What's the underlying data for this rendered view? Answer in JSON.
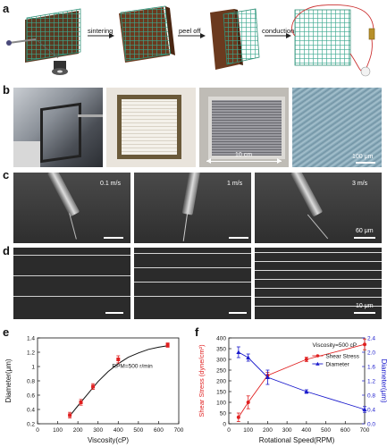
{
  "panels": {
    "a": {
      "letter": "a",
      "steps": [
        "sintering",
        "peel off",
        "conduction"
      ]
    },
    "b": {
      "letter": "b",
      "dimension_label": "10 cm",
      "scale_label": "100 μm"
    },
    "c": {
      "letter": "c",
      "speeds": [
        "0.1 m/s",
        "1 m/s",
        "3 m/s"
      ],
      "scale_label": "60 μm"
    },
    "d": {
      "letter": "d",
      "scale_label": "10 μm"
    },
    "e": {
      "letter": "e"
    },
    "f": {
      "letter": "f"
    }
  },
  "colors": {
    "grid_green": "#3aa88f",
    "sheet_brown": "#6b3a1f",
    "series_red": "#e02020",
    "series_blue": "#1a1acc"
  },
  "chart_data": [
    {
      "type": "line",
      "panel": "e",
      "xlabel": "Viscosity(cP)",
      "ylabel": "Diameter(μm)",
      "annotation": "RPM=500 r/min",
      "xlim": [
        0,
        700
      ],
      "ylim": [
        0.2,
        1.4
      ],
      "xticks": [
        0,
        100,
        200,
        300,
        400,
        500,
        600,
        700
      ],
      "yticks": [
        0.2,
        0.4,
        0.6,
        0.8,
        1.0,
        1.2,
        1.4
      ],
      "series": [
        {
          "x": [
            160,
            215,
            275,
            400,
            645
          ],
          "y": [
            0.32,
            0.5,
            0.72,
            1.1,
            1.3
          ],
          "err": [
            0.04,
            0.04,
            0.04,
            0.05,
            0.03
          ]
        }
      ],
      "fit": {
        "x": [
          160,
          200,
          250,
          300,
          350,
          400,
          450,
          500,
          550,
          600,
          645
        ],
        "y": [
          0.31,
          0.45,
          0.62,
          0.79,
          0.93,
          1.04,
          1.13,
          1.19,
          1.24,
          1.27,
          1.29
        ]
      }
    },
    {
      "type": "line",
      "panel": "f",
      "xlabel": "Rotational Speed(RPM)",
      "ylabel": "Shear Stress (dyne/cm²)",
      "y2label": "Diameter(μm)",
      "annotation": "Viscosity=500 cP",
      "xlim": [
        0,
        700
      ],
      "ylim": [
        0,
        400
      ],
      "y2lim": [
        0.0,
        2.4
      ],
      "xticks": [
        0,
        100,
        200,
        300,
        400,
        500,
        600,
        700
      ],
      "yticks": [
        0,
        50,
        100,
        150,
        200,
        250,
        300,
        350,
        400
      ],
      "y2ticks": [
        0.0,
        0.4,
        0.8,
        1.2,
        1.6,
        2.0,
        2.4
      ],
      "legend_position": "top-right",
      "series": [
        {
          "name": "Shear Stress",
          "axis": "left",
          "x": [
            50,
            100,
            200,
            400,
            700
          ],
          "y": [
            30,
            100,
            225,
            300,
            370
          ],
          "err": [
            20,
            30,
            15,
            10,
            25
          ]
        },
        {
          "name": "Diameter",
          "axis": "right",
          "x": [
            50,
            100,
            200,
            400,
            700
          ],
          "y": [
            2.0,
            1.85,
            1.3,
            0.9,
            0.4
          ],
          "err": [
            0.15,
            0.1,
            0.2,
            0.05,
            0.08
          ]
        }
      ]
    }
  ]
}
